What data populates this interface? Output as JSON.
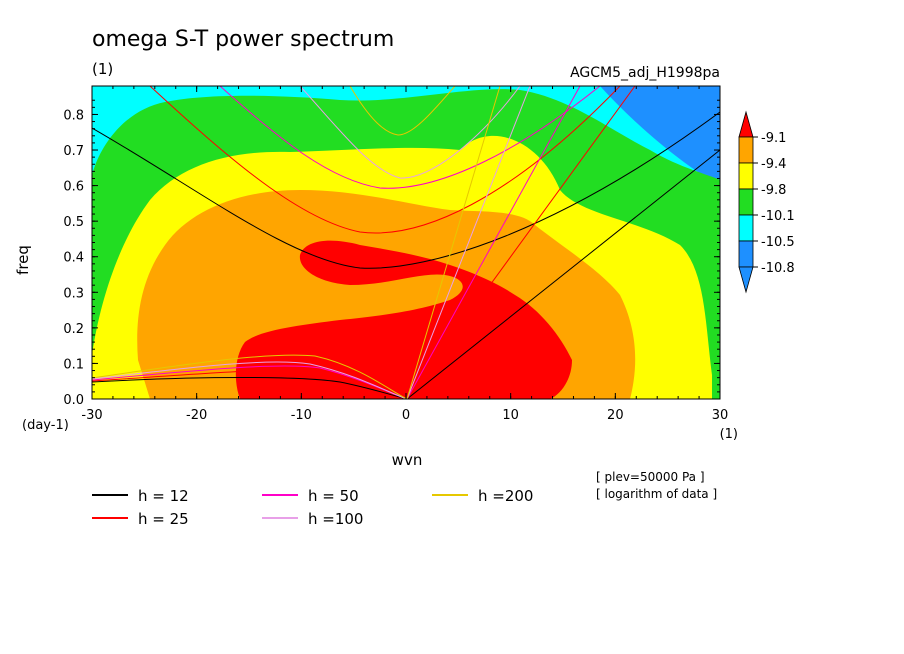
{
  "title": "omega S-T power spectrum",
  "unit_label": "(1)",
  "dataset": "AGCM5_adj_H1998pa",
  "notes": [
    "[ plev=50000 Pa ]",
    "[ logarithm of data ]"
  ],
  "colors": {
    "blue": "#1e90ff",
    "cyan": "#00ffff",
    "green": "#22dd22",
    "yellow": "#ffff00",
    "orange": "#ffa500",
    "red": "#ff0000"
  },
  "chart_data": {
    "type": "contour",
    "title": "omega S-T power spectrum",
    "xlabel": "wvn",
    "ylabel": "freq",
    "x_unit": "(1)",
    "y_unit": "(day-1)",
    "xlim": [
      -30,
      30
    ],
    "ylim": [
      0,
      0.88
    ],
    "x_ticks": [
      "-30",
      "-20",
      "-10",
      "0",
      "10",
      "20",
      "30"
    ],
    "y_ticks": [
      "0.0",
      "0.1",
      "0.2",
      "0.3",
      "0.4",
      "0.5",
      "0.6",
      "0.7",
      "0.8"
    ],
    "colorbar": {
      "levels": [
        "-9.1",
        "-9.4",
        "-9.8",
        "-10.1",
        "-10.5",
        "-10.8"
      ],
      "colors": [
        "#ff0000",
        "#ffa500",
        "#ffff00",
        "#22dd22",
        "#00ffff",
        "#1e90ff"
      ]
    },
    "dispersion_curves": [
      {
        "label": "h = 12",
        "h": 12,
        "color": "#000000"
      },
      {
        "label": "h = 25",
        "h": 25,
        "color": "#ff0000"
      },
      {
        "label": "h = 50",
        "h": 50,
        "color": "#ff00c8"
      },
      {
        "label": "h =100",
        "h": 100,
        "color": "#e8a0e8"
      },
      {
        "label": "h =200",
        "h": 200,
        "color": "#e6c800"
      }
    ]
  }
}
